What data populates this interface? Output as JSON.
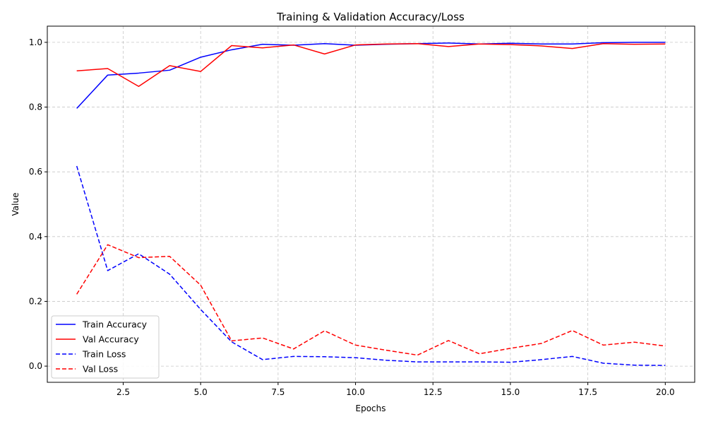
{
  "chart_data": {
    "type": "line",
    "title": "Training & Validation Accuracy/Loss",
    "xlabel": "Epochs",
    "ylabel": "Value",
    "xlim": [
      0.05,
      20.95
    ],
    "ylim": [
      -0.05,
      1.05
    ],
    "xticks": [
      2.5,
      5.0,
      7.5,
      10.0,
      12.5,
      15.0,
      17.5,
      20.0
    ],
    "xtick_labels": [
      "2.5",
      "5.0",
      "7.5",
      "10.0",
      "12.5",
      "15.0",
      "17.5",
      "20.0"
    ],
    "yticks": [
      0.0,
      0.2,
      0.4,
      0.6,
      0.8,
      1.0
    ],
    "ytick_labels": [
      "0.0",
      "0.2",
      "0.4",
      "0.6",
      "0.8",
      "1.0"
    ],
    "grid": true,
    "legend_position": "lower-left",
    "x": [
      1,
      2,
      3,
      4,
      5,
      6,
      7,
      8,
      9,
      10,
      11,
      12,
      13,
      14,
      15,
      16,
      17,
      18,
      19,
      20
    ],
    "series": [
      {
        "name": "Train Accuracy",
        "color": "#0000ff",
        "style": "solid",
        "values": [
          0.796,
          0.899,
          0.905,
          0.914,
          0.954,
          0.977,
          0.994,
          0.991,
          0.996,
          0.991,
          0.994,
          0.996,
          0.998,
          0.995,
          0.997,
          0.995,
          0.995,
          0.999,
          1.0,
          1.0
        ]
      },
      {
        "name": "Val Accuracy",
        "color": "#ff0000",
        "style": "solid",
        "values": [
          0.912,
          0.919,
          0.864,
          0.928,
          0.91,
          0.99,
          0.983,
          0.992,
          0.964,
          0.992,
          0.995,
          0.996,
          0.987,
          0.995,
          0.993,
          0.989,
          0.981,
          0.996,
          0.994,
          0.995
        ]
      },
      {
        "name": "Train Loss",
        "color": "#0000ff",
        "style": "dashed",
        "values": [
          0.618,
          0.295,
          0.347,
          0.284,
          0.175,
          0.075,
          0.02,
          0.03,
          0.029,
          0.026,
          0.018,
          0.013,
          0.013,
          0.013,
          0.012,
          0.02,
          0.03,
          0.009,
          0.003,
          0.002
        ]
      },
      {
        "name": "Val Loss",
        "color": "#ff0000",
        "style": "dashed",
        "values": [
          0.222,
          0.375,
          0.335,
          0.339,
          0.25,
          0.078,
          0.087,
          0.053,
          0.109,
          0.065,
          0.049,
          0.034,
          0.079,
          0.038,
          0.055,
          0.07,
          0.11,
          0.065,
          0.074,
          0.062
        ]
      }
    ]
  }
}
